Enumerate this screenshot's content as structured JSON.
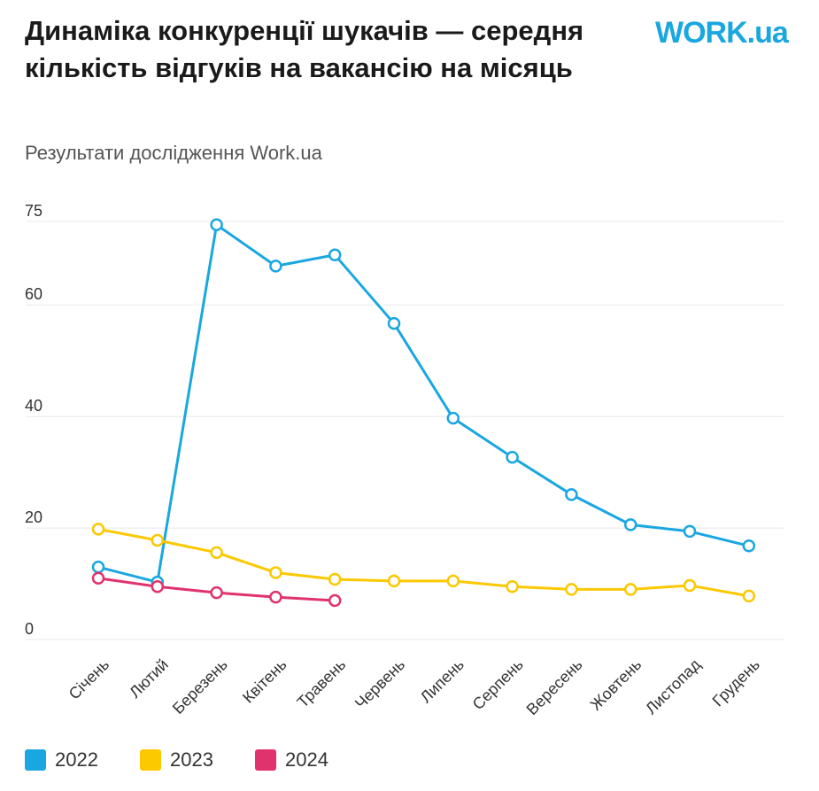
{
  "chart_data": {
    "type": "line",
    "title": "Динаміка конкуренції шукачів — середня кількість відгуків на вакансію на місяць",
    "subtitle": "Результати дослідження Work.ua",
    "logo": "WORK.ua",
    "categories": [
      "Січень",
      "Лютий",
      "Березень",
      "Квітень",
      "Травень",
      "Червень",
      "Липень",
      "Серпень",
      "Вересень",
      "Жовтень",
      "Листопад",
      "Грудень"
    ],
    "series": [
      {
        "name": "2022",
        "color": "#1aa7e0",
        "values": [
          13,
          10.3,
          74.4,
          67,
          69,
          56.7,
          39.7,
          32.7,
          26,
          20.6,
          19.4,
          16.8
        ]
      },
      {
        "name": "2023",
        "color": "#fcc800",
        "values": [
          19.8,
          17.8,
          15.6,
          12,
          10.8,
          10.5,
          10.5,
          9.5,
          9,
          9,
          9.7,
          7.8
        ]
      },
      {
        "name": "2024",
        "color": "#e0336e",
        "values": [
          11,
          9.5,
          8.4,
          7.6,
          7,
          null,
          null,
          null,
          null,
          null,
          null,
          null
        ]
      }
    ],
    "ylim": [
      0,
      75
    ],
    "yticks": [
      0,
      20,
      40,
      60,
      75
    ],
    "grid": true
  }
}
